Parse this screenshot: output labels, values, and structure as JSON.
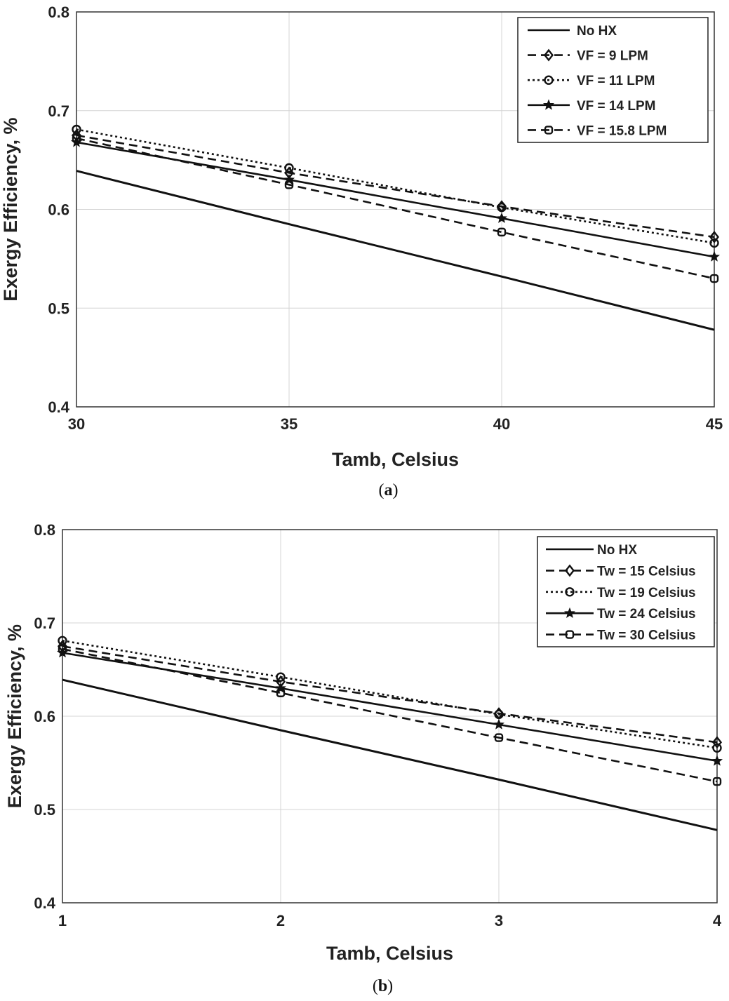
{
  "chart_data": [
    {
      "type": "line",
      "panel": "a",
      "caption": "(a)",
      "caption_letter": "a",
      "xlabel": "Tamb, Celsius",
      "ylabel": "Exergy Efficiency, %",
      "xlim": [
        30,
        45
      ],
      "ylim": [
        0.4,
        0.8
      ],
      "xticks": [
        "30",
        "35",
        "40",
        "45"
      ],
      "yticks": [
        "0.4",
        "0.5",
        "0.6",
        "0.7",
        "0.8"
      ],
      "grid": true,
      "legend_position": "top-right",
      "x": [
        30,
        35,
        40,
        45
      ],
      "series": [
        {
          "name": "No HX",
          "values": [
            0.639,
            0.585,
            0.532,
            0.478
          ],
          "dash": "solid",
          "marker": "none"
        },
        {
          "name": "VF = 9 LPM",
          "values": [
            0.675,
            0.637,
            0.603,
            0.572
          ],
          "dash": "dashed",
          "marker": "diamond"
        },
        {
          "name": "VF = 11 LPM",
          "values": [
            0.681,
            0.642,
            0.602,
            0.566
          ],
          "dash": "dotted",
          "marker": "circle"
        },
        {
          "name": "VF = 14 LPM",
          "values": [
            0.668,
            0.63,
            0.591,
            0.552
          ],
          "dash": "solid",
          "marker": "star"
        },
        {
          "name": "VF = 15.8 LPM",
          "values": [
            0.672,
            0.625,
            0.577,
            0.53
          ],
          "dash": "dashed",
          "marker": "square"
        }
      ]
    },
    {
      "type": "line",
      "panel": "b",
      "caption": "(b)",
      "caption_letter": "b",
      "xlabel": "Tamb, Celsius",
      "ylabel": "Exergy Efficiency, %",
      "xlim": [
        1,
        4
      ],
      "ylim": [
        0.4,
        0.8
      ],
      "xticks": [
        "1",
        "2",
        "3",
        "4"
      ],
      "yticks": [
        "0.4",
        "0.5",
        "0.6",
        "0.7",
        "0.8"
      ],
      "grid": true,
      "legend_position": "top-right",
      "x": [
        1,
        2,
        3,
        4
      ],
      "series": [
        {
          "name": "No HX",
          "values": [
            0.639,
            0.585,
            0.532,
            0.478
          ],
          "dash": "solid",
          "marker": "none"
        },
        {
          "name": "Tw = 15 Celsius",
          "values": [
            0.675,
            0.637,
            0.603,
            0.572
          ],
          "dash": "dashed",
          "marker": "diamond"
        },
        {
          "name": "Tw = 19 Celsius",
          "values": [
            0.681,
            0.642,
            0.602,
            0.566
          ],
          "dash": "dotted",
          "marker": "circle"
        },
        {
          "name": "Tw = 24 Celsius",
          "values": [
            0.668,
            0.63,
            0.591,
            0.552
          ],
          "dash": "solid",
          "marker": "star"
        },
        {
          "name": "Tw = 30 Celsius",
          "values": [
            0.672,
            0.625,
            0.577,
            0.53
          ],
          "dash": "dashed",
          "marker": "square"
        }
      ]
    }
  ]
}
